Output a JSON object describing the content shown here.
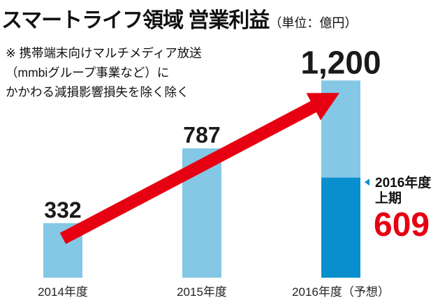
{
  "title": {
    "main": "スマートライフ領域 営業利益",
    "unit": "（単位：億円）"
  },
  "notes": [
    "※ 携帯端末向けマルチメディア放送",
    "（mmbiグループ事業など）に",
    "かかわる減損影響損失を除く除く"
  ],
  "colors": {
    "bar_light": "#84c8e6",
    "bar_dark": "#0a8fce",
    "highlight_red": "#e60012",
    "text": "#1a1a1a"
  },
  "chart_data": {
    "type": "bar",
    "title": "スマートライフ領域 営業利益",
    "unit": "（単位：億円）",
    "categories": [
      "2014年度",
      "2015年度",
      "2016年度（予想）"
    ],
    "values": [
      332,
      787,
      1200
    ],
    "value_labels": [
      "332",
      "787",
      "1,200"
    ],
    "series": [
      {
        "name": "上期",
        "values": [
          null,
          null,
          609
        ]
      },
      {
        "name": "",
        "values": [
          332,
          787,
          591
        ]
      }
    ],
    "ylim": [
      0,
      1350
    ],
    "grid": false,
    "trend_arrow": {
      "from": "2014年度",
      "to": "2016年度（予想）"
    },
    "annotation": {
      "category": "2016年度（予想）",
      "line1": "2016年度",
      "line2": "上期",
      "value": 609,
      "value_label": "609"
    }
  }
}
